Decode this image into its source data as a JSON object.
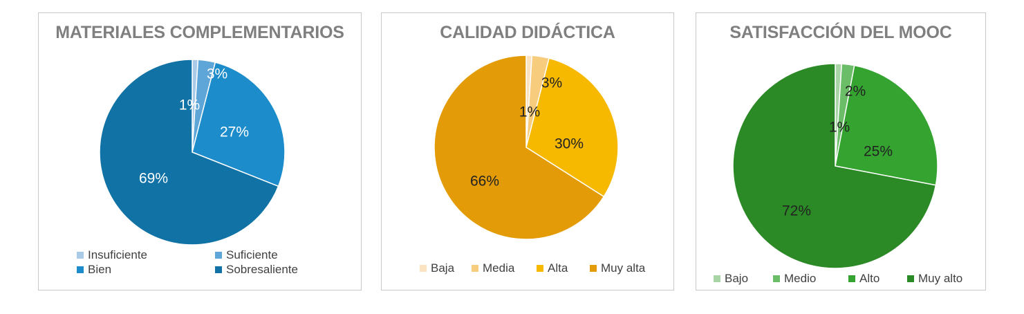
{
  "chart_data": [
    {
      "type": "pie",
      "title": "MATERIALES COMPLEMENTARIOS",
      "labels": [
        "Insuficiente",
        "Suficiente",
        "Bien",
        "Sobresaliente"
      ],
      "values": [
        1,
        3,
        27,
        69
      ],
      "data_labels": [
        "1%",
        "3%",
        "27%",
        "69%"
      ],
      "colors": [
        "#a9cbe8",
        "#5fa6d8",
        "#1c8ccb",
        "#1172a6"
      ],
      "legend": "bottom"
    },
    {
      "type": "pie",
      "title": "CALIDAD DIDÁCTICA",
      "labels": [
        "Baja",
        "Media",
        "Alta",
        "Muy alta"
      ],
      "values": [
        1,
        3,
        30,
        66
      ],
      "data_labels": [
        "1%",
        "3%",
        "30%",
        "66%"
      ],
      "colors": [
        "#fbe3c2",
        "#f7cc7d",
        "#f7b900",
        "#e39c08"
      ],
      "legend": "bottom"
    },
    {
      "type": "pie",
      "title": "SATISFACCIÓN DEL MOOC",
      "labels": [
        "Bajo",
        "Medio",
        "Alto",
        "Muy alto"
      ],
      "values": [
        1,
        2,
        25,
        72
      ],
      "data_labels": [
        "1%",
        "2%",
        "25%",
        "72%"
      ],
      "colors": [
        "#a8d4a6",
        "#6bbd68",
        "#34a330",
        "#2b8a26"
      ],
      "legend": "bottom"
    }
  ]
}
